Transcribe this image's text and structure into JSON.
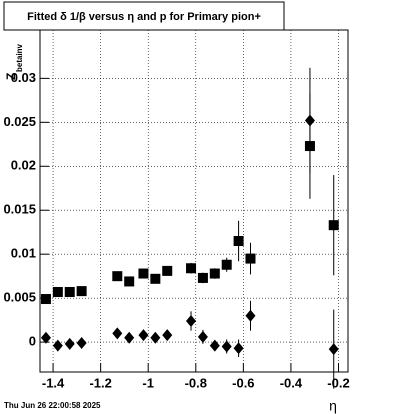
{
  "chart_data": {
    "type": "errorbar-scatter",
    "title": "Fitted δ 1/β versus η and p for Primary pion+",
    "x_label": "η",
    "y_label": "Z",
    "y_label_sub": "betainv",
    "footer": "Thu Jun 26 22:00:58 2025",
    "xlim": [
      -1.455,
      -0.16
    ],
    "ylim": [
      -0.0034,
      0.0355
    ],
    "xticks": [
      -1.4,
      -1.2,
      -1,
      -0.8,
      -0.6,
      -0.4,
      -0.2
    ],
    "yticks": [
      0,
      0.005,
      0.01,
      0.015,
      0.02,
      0.025,
      0.03
    ],
    "grid": true,
    "series": [
      {
        "marker": "square",
        "color": "#000000",
        "x": [
          -1.43,
          -1.38,
          -1.33,
          -1.28,
          -1.13,
          -1.08,
          -1.02,
          -0.97,
          -0.92,
          -0.82,
          -0.77,
          -0.72,
          -0.67,
          -0.62,
          -0.57,
          -0.32,
          -0.22
        ],
        "values": [
          0.0049,
          0.0057,
          0.0057,
          0.0058,
          0.0075,
          0.0069,
          0.0078,
          0.0072,
          0.0081,
          0.0084,
          0.0073,
          0.0078,
          0.0088,
          0.0115,
          0.0095,
          0.0223,
          0.0133
        ],
        "errors": [
          0.0003,
          0.0003,
          0.0003,
          0.0003,
          0.0004,
          0.0004,
          0.0005,
          0.0004,
          0.0005,
          0.0006,
          0.0006,
          0.0006,
          0.0008,
          0.0023,
          0.0018,
          0.006,
          0.0057
        ]
      },
      {
        "marker": "diamond",
        "color": "#000000",
        "x": [
          -1.43,
          -1.38,
          -1.33,
          -1.28,
          -1.13,
          -1.08,
          -1.02,
          -0.97,
          -0.92,
          -0.82,
          -0.77,
          -0.72,
          -0.67,
          -0.62,
          -0.57,
          -0.32,
          -0.22
        ],
        "values": [
          0.0005,
          -0.0004,
          -0.0002,
          -0.0001,
          0.001,
          0.0005,
          0.0008,
          0.0005,
          0.0008,
          0.0024,
          0.0006,
          -0.0004,
          -0.0005,
          -0.0007,
          0.003,
          0.0252,
          -0.0008
        ],
        "errors": [
          0.0003,
          0.0003,
          0.0003,
          0.0003,
          0.0004,
          0.0004,
          0.0005,
          0.0004,
          0.0005,
          0.0011,
          0.0008,
          0.0006,
          0.0008,
          0.001,
          0.0017,
          0.006,
          0.0045
        ]
      }
    ]
  }
}
